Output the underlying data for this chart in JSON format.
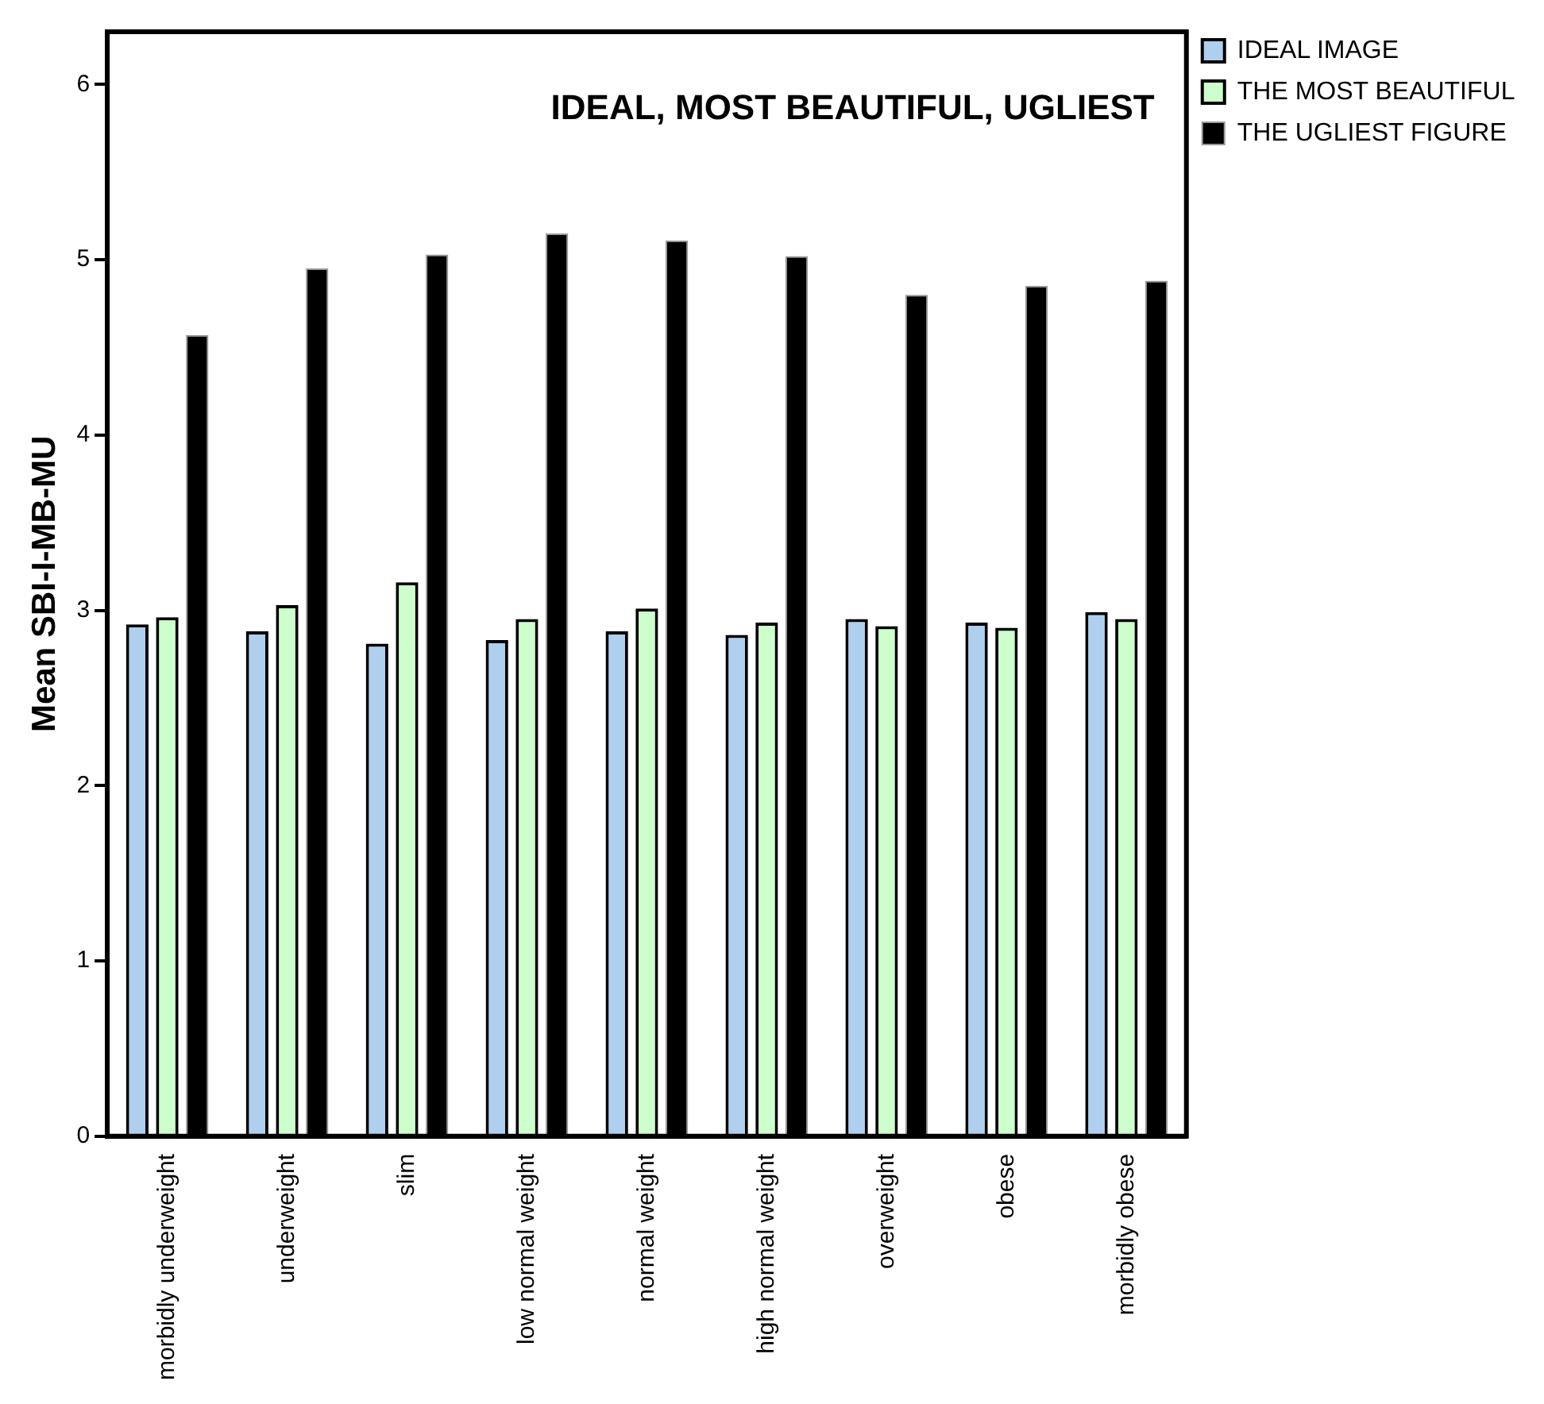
{
  "chart_data": {
    "type": "bar",
    "title": "IDEAL, MOST BEAUTIFUL, UGLIEST",
    "ylabel": "Mean SBI-I-MB-MU",
    "categories": [
      "morbidly underweight",
      "underweight",
      "slim",
      "low normal weight",
      "normal weight",
      "high normal weight",
      "overweight",
      "obese",
      "morbidly obese"
    ],
    "series": [
      {
        "name": "IDEAL IMAGE",
        "color": "#aecfee",
        "values": [
          2.92,
          2.88,
          2.81,
          2.83,
          2.88,
          2.86,
          2.95,
          2.93,
          2.99
        ]
      },
      {
        "name": "THE MOST BEAUTIFUL",
        "color": "#ccffcc",
        "values": [
          2.96,
          3.03,
          3.16,
          2.95,
          3.01,
          2.93,
          2.91,
          2.9,
          2.95
        ]
      },
      {
        "name": "THE UGLIEST FIGURE",
        "color": "#000000",
        "values": [
          4.57,
          4.95,
          5.03,
          5.15,
          5.11,
          5.02,
          4.8,
          4.85,
          4.88
        ]
      }
    ],
    "ylim": [
      0,
      6.3
    ],
    "yticks": [
      0,
      1,
      2,
      3,
      4,
      5,
      6
    ],
    "grid": false,
    "legend": "top right"
  }
}
